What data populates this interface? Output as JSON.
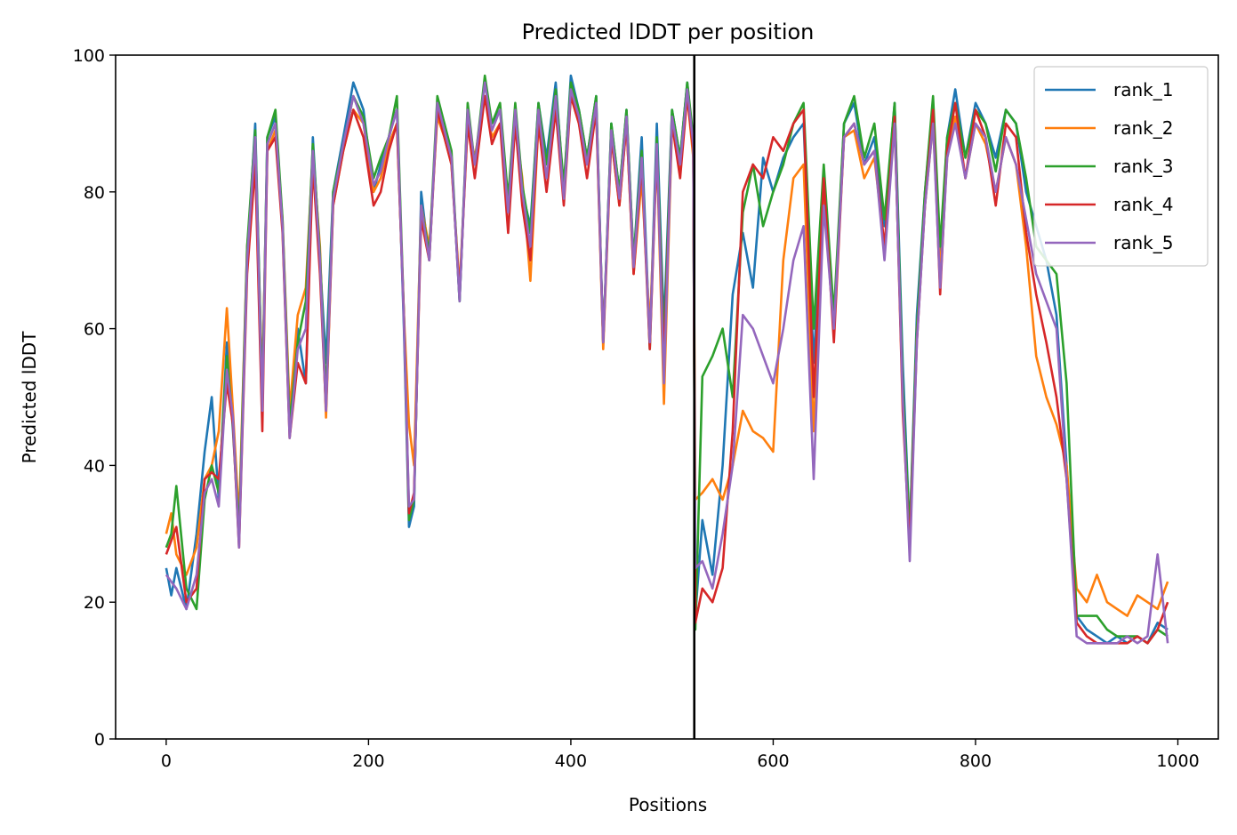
{
  "chart_data": {
    "type": "line",
    "title": "Predicted lDDT per position",
    "xlabel": "Positions",
    "ylabel": "Predicted lDDT",
    "xlim": [
      -50,
      1040
    ],
    "ylim": [
      0,
      100
    ],
    "xticks": [
      0,
      200,
      400,
      600,
      800,
      1000
    ],
    "yticks": [
      0,
      20,
      40,
      60,
      80,
      100
    ],
    "grid": false,
    "legend": "top-right",
    "vline": 522,
    "series": [
      {
        "name": "rank_1",
        "color": "#1f77b4",
        "x": [
          0,
          5,
          10,
          20,
          30,
          38,
          45,
          52,
          60,
          66,
          72,
          80,
          88,
          95,
          100,
          108,
          115,
          122,
          130,
          138,
          145,
          152,
          158,
          165,
          175,
          185,
          195,
          205,
          212,
          220,
          228,
          235,
          240,
          245,
          252,
          260,
          268,
          275,
          282,
          290,
          298,
          305,
          315,
          322,
          330,
          338,
          345,
          352,
          360,
          368,
          376,
          385,
          393,
          400,
          408,
          416,
          425,
          432,
          440,
          448,
          455,
          462,
          470,
          478,
          485,
          492,
          500,
          508,
          515,
          521,
          523,
          530,
          540,
          550,
          560,
          570,
          580,
          590,
          600,
          610,
          620,
          630,
          640,
          650,
          660,
          670,
          680,
          690,
          700,
          710,
          720,
          728,
          735,
          742,
          750,
          758,
          765,
          772,
          780,
          790,
          800,
          810,
          820,
          830,
          840,
          850,
          860,
          870,
          880,
          890,
          900,
          910,
          920,
          930,
          940,
          950,
          960,
          970,
          980,
          990
        ],
        "values": [
          25,
          21,
          25,
          19,
          30,
          42,
          50,
          35,
          58,
          45,
          30,
          70,
          90,
          50,
          88,
          91,
          75,
          45,
          60,
          52,
          88,
          70,
          55,
          80,
          88,
          96,
          92,
          80,
          84,
          88,
          92,
          60,
          31,
          34,
          80,
          70,
          93,
          90,
          85,
          64,
          92,
          84,
          96,
          90,
          92,
          78,
          92,
          80,
          75,
          93,
          85,
          96,
          80,
          97,
          92,
          85,
          94,
          58,
          90,
          80,
          92,
          70,
          88,
          58,
          90,
          60,
          92,
          85,
          96,
          87,
          18,
          32,
          24,
          40,
          65,
          74,
          66,
          85,
          80,
          85,
          88,
          90,
          55,
          82,
          60,
          90,
          93,
          84,
          88,
          75,
          93,
          55,
          30,
          62,
          80,
          93,
          70,
          88,
          95,
          85,
          93,
          90,
          85,
          92,
          90,
          80,
          75,
          70,
          62,
          40,
          18,
          16,
          15,
          14,
          15,
          14,
          15,
          14,
          17,
          16
        ]
      },
      {
        "name": "rank_2",
        "color": "#ff7f0e",
        "x": [
          0,
          5,
          10,
          20,
          30,
          38,
          45,
          52,
          60,
          66,
          72,
          80,
          88,
          95,
          100,
          108,
          115,
          122,
          130,
          138,
          145,
          152,
          158,
          165,
          175,
          185,
          195,
          205,
          212,
          220,
          228,
          235,
          240,
          245,
          252,
          260,
          268,
          275,
          282,
          290,
          298,
          305,
          315,
          322,
          330,
          338,
          345,
          352,
          360,
          368,
          376,
          385,
          393,
          400,
          408,
          416,
          425,
          432,
          440,
          448,
          455,
          462,
          470,
          478,
          485,
          492,
          500,
          508,
          515,
          521,
          523,
          530,
          540,
          550,
          560,
          570,
          580,
          590,
          600,
          610,
          620,
          630,
          640,
          650,
          660,
          670,
          680,
          690,
          700,
          710,
          720,
          728,
          735,
          742,
          750,
          758,
          765,
          772,
          780,
          790,
          800,
          810,
          820,
          830,
          840,
          850,
          860,
          870,
          880,
          890,
          900,
          910,
          920,
          930,
          940,
          950,
          960,
          970,
          980,
          990
        ],
        "values": [
          30,
          33,
          27,
          24,
          28,
          38,
          40,
          45,
          63,
          48,
          32,
          72,
          85,
          52,
          86,
          89,
          76,
          48,
          62,
          66,
          86,
          72,
          47,
          78,
          86,
          92,
          90,
          80,
          82,
          87,
          90,
          62,
          46,
          40,
          78,
          72,
          91,
          88,
          84,
          66,
          90,
          85,
          94,
          88,
          90,
          78,
          90,
          82,
          67,
          90,
          82,
          93,
          80,
          94,
          90,
          84,
          92,
          57,
          88,
          78,
          90,
          68,
          82,
          60,
          86,
          49,
          90,
          83,
          94,
          85,
          35,
          36,
          38,
          35,
          40,
          48,
          45,
          44,
          42,
          70,
          82,
          84,
          45,
          80,
          60,
          88,
          89,
          82,
          85,
          72,
          90,
          50,
          28,
          60,
          78,
          90,
          68,
          85,
          91,
          82,
          90,
          87,
          80,
          88,
          84,
          72,
          56,
          50,
          46,
          40,
          22,
          20,
          24,
          20,
          19,
          18,
          21,
          20,
          19,
          23
        ]
      },
      {
        "name": "rank_3",
        "color": "#2ca02c",
        "x": [
          0,
          5,
          10,
          20,
          30,
          38,
          45,
          52,
          60,
          66,
          72,
          80,
          88,
          95,
          100,
          108,
          115,
          122,
          130,
          138,
          145,
          152,
          158,
          165,
          175,
          185,
          195,
          205,
          212,
          220,
          228,
          235,
          240,
          245,
          252,
          260,
          268,
          275,
          282,
          290,
          298,
          305,
          315,
          322,
          330,
          338,
          345,
          352,
          360,
          368,
          376,
          385,
          393,
          400,
          408,
          416,
          425,
          432,
          440,
          448,
          455,
          462,
          470,
          478,
          485,
          492,
          500,
          508,
          515,
          521,
          523,
          530,
          540,
          550,
          560,
          570,
          580,
          590,
          600,
          610,
          620,
          630,
          640,
          650,
          660,
          670,
          680,
          690,
          700,
          710,
          720,
          728,
          735,
          742,
          750,
          758,
          765,
          772,
          780,
          790,
          800,
          810,
          820,
          830,
          840,
          850,
          860,
          870,
          880,
          890,
          900,
          910,
          920,
          930,
          940,
          950,
          960,
          970,
          980,
          990
        ],
        "values": [
          28,
          30,
          37,
          22,
          19,
          35,
          40,
          36,
          56,
          46,
          30,
          72,
          89,
          50,
          88,
          92,
          76,
          46,
          58,
          64,
          87,
          71,
          50,
          80,
          87,
          94,
          91,
          82,
          85,
          88,
          94,
          62,
          32,
          35,
          78,
          71,
          94,
          90,
          86,
          64,
          93,
          84,
          97,
          90,
          93,
          79,
          93,
          81,
          74,
          93,
          84,
          95,
          81,
          96,
          92,
          85,
          94,
          58,
          90,
          80,
          92,
          70,
          86,
          57,
          88,
          57,
          92,
          85,
          96,
          88,
          16,
          53,
          56,
          60,
          50,
          77,
          84,
          75,
          80,
          84,
          90,
          93,
          60,
          84,
          62,
          90,
          94,
          85,
          90,
          76,
          93,
          52,
          30,
          60,
          80,
          94,
          72,
          88,
          93,
          85,
          92,
          90,
          83,
          92,
          90,
          82,
          72,
          70,
          68,
          52,
          18,
          18,
          18,
          16,
          15,
          15,
          15,
          14,
          16,
          15
        ]
      },
      {
        "name": "rank_4",
        "color": "#d62728",
        "x": [
          0,
          5,
          10,
          20,
          30,
          38,
          45,
          52,
          60,
          66,
          72,
          80,
          88,
          95,
          100,
          108,
          115,
          122,
          130,
          138,
          145,
          152,
          158,
          165,
          175,
          185,
          195,
          205,
          212,
          220,
          228,
          235,
          240,
          245,
          252,
          260,
          268,
          275,
          282,
          290,
          298,
          305,
          315,
          322,
          330,
          338,
          345,
          352,
          360,
          368,
          376,
          385,
          393,
          400,
          408,
          416,
          425,
          432,
          440,
          448,
          455,
          462,
          470,
          478,
          485,
          492,
          500,
          508,
          515,
          521,
          523,
          530,
          540,
          550,
          560,
          570,
          580,
          590,
          600,
          610,
          620,
          630,
          640,
          650,
          660,
          670,
          680,
          690,
          700,
          710,
          720,
          728,
          735,
          742,
          750,
          758,
          765,
          772,
          780,
          790,
          800,
          810,
          820,
          830,
          840,
          850,
          860,
          870,
          880,
          890,
          900,
          910,
          920,
          930,
          940,
          950,
          960,
          970,
          980,
          990
        ],
        "values": [
          27,
          29,
          31,
          20,
          22,
          38,
          39,
          38,
          52,
          46,
          28,
          68,
          84,
          45,
          86,
          88,
          74,
          44,
          55,
          52,
          84,
          68,
          48,
          78,
          86,
          92,
          88,
          78,
          80,
          86,
          90,
          62,
          33,
          36,
          76,
          70,
          92,
          88,
          84,
          65,
          90,
          82,
          94,
          87,
          90,
          74,
          90,
          78,
          70,
          90,
          80,
          92,
          78,
          94,
          90,
          82,
          92,
          58,
          88,
          78,
          90,
          68,
          84,
          57,
          86,
          55,
          90,
          82,
          94,
          86,
          17,
          22,
          20,
          25,
          45,
          80,
          84,
          82,
          88,
          86,
          90,
          92,
          50,
          82,
          58,
          88,
          90,
          84,
          86,
          72,
          91,
          48,
          28,
          58,
          78,
          92,
          65,
          86,
          93,
          82,
          92,
          88,
          78,
          90,
          88,
          74,
          65,
          58,
          50,
          38,
          17,
          15,
          14,
          14,
          14,
          14,
          15,
          14,
          16,
          20
        ]
      },
      {
        "name": "rank_5",
        "color": "#9467bd",
        "x": [
          0,
          5,
          10,
          20,
          30,
          38,
          45,
          52,
          60,
          66,
          72,
          80,
          88,
          95,
          100,
          108,
          115,
          122,
          130,
          138,
          145,
          152,
          158,
          165,
          175,
          185,
          195,
          205,
          212,
          220,
          228,
          235,
          240,
          245,
          252,
          260,
          268,
          275,
          282,
          290,
          298,
          305,
          315,
          322,
          330,
          338,
          345,
          352,
          360,
          368,
          376,
          385,
          393,
          400,
          408,
          416,
          425,
          432,
          440,
          448,
          455,
          462,
          470,
          478,
          485,
          492,
          500,
          508,
          515,
          521,
          523,
          530,
          540,
          550,
          560,
          570,
          580,
          590,
          600,
          610,
          620,
          630,
          640,
          650,
          660,
          670,
          680,
          690,
          700,
          710,
          720,
          728,
          735,
          742,
          750,
          758,
          765,
          772,
          780,
          790,
          800,
          810,
          820,
          830,
          840,
          850,
          860,
          870,
          880,
          890,
          900,
          910,
          920,
          930,
          940,
          950,
          960,
          970,
          980,
          990
        ],
        "values": [
          24,
          23,
          22,
          19,
          24,
          36,
          38,
          34,
          54,
          47,
          28,
          70,
          88,
          48,
          87,
          90,
          75,
          44,
          57,
          60,
          86,
          70,
          48,
          79,
          87,
          94,
          90,
          81,
          83,
          88,
          92,
          61,
          34,
          35,
          78,
          70,
          93,
          89,
          85,
          64,
          92,
          84,
          96,
          89,
          92,
          77,
          92,
          80,
          72,
          92,
          82,
          94,
          79,
          95,
          91,
          84,
          93,
          58,
          89,
          79,
          91,
          69,
          85,
          58,
          87,
          52,
          91,
          84,
          95,
          87,
          25,
          26,
          22,
          30,
          40,
          62,
          60,
          56,
          52,
          60,
          70,
          75,
          38,
          78,
          60,
          88,
          90,
          84,
          86,
          70,
          90,
          50,
          26,
          58,
          78,
          90,
          66,
          85,
          90,
          82,
          90,
          88,
          80,
          88,
          84,
          76,
          68,
          64,
          60,
          38,
          15,
          14,
          14,
          14,
          14,
          15,
          14,
          15,
          27,
          14
        ]
      }
    ]
  }
}
